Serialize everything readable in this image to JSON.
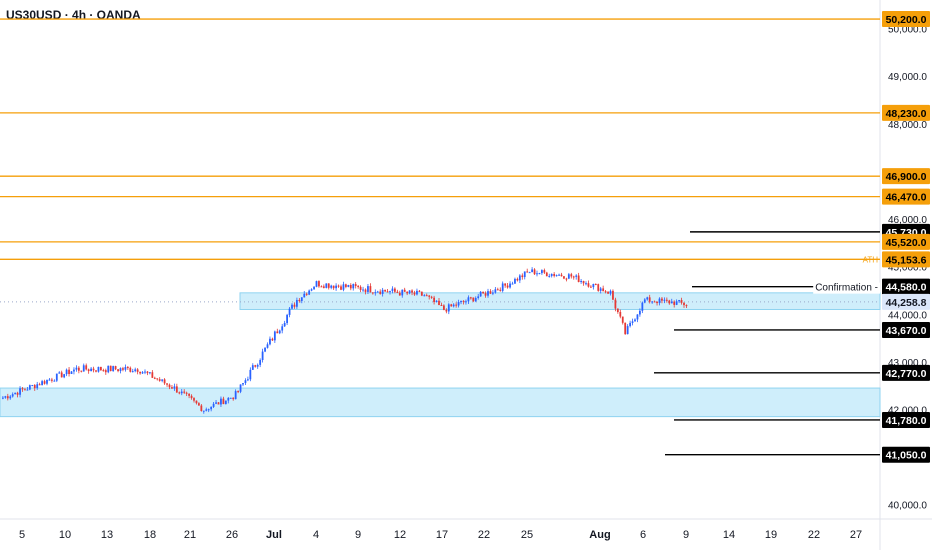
{
  "header": {
    "symbol": "US30USD · 4h · OANDA",
    "currency": "USD"
  },
  "colors": {
    "level_line": "#f59f0a",
    "level_tag_bg": "#f59f0a",
    "target_tag_bg": "#000000",
    "zone_fill": "#cfeefb",
    "zone_border": "#8fd3f0",
    "up_candle": "#2962ff",
    "down_candle": "#e53935"
  },
  "chart_data": {
    "type": "candlestick",
    "y_axis": {
      "min": 39700,
      "max": 50600,
      "ticks": [
        {
          "value": 50000,
          "label": "50,000.0"
        },
        {
          "value": 49000,
          "label": "49,000.0"
        },
        {
          "value": 48000,
          "label": "48,000.0"
        },
        {
          "value": 47000,
          "label": "47,000.0"
        },
        {
          "value": 46000,
          "label": "46,000.0"
        },
        {
          "value": 45000,
          "label": "45,000.0"
        },
        {
          "value": 44000,
          "label": "44,000.0"
        },
        {
          "value": 43000,
          "label": "43,000.0"
        },
        {
          "value": 42000,
          "label": "42,000.0"
        },
        {
          "value": 41000,
          "label": "41,000.0"
        },
        {
          "value": 40000,
          "label": "40,000.0"
        }
      ]
    },
    "x_axis": {
      "ticks": [
        {
          "label": "5",
          "bold": false
        },
        {
          "label": "10",
          "bold": false
        },
        {
          "label": "13",
          "bold": false
        },
        {
          "label": "18",
          "bold": false
        },
        {
          "label": "21",
          "bold": false
        },
        {
          "label": "26",
          "bold": false
        },
        {
          "label": "Jul",
          "bold": true
        },
        {
          "label": "4",
          "bold": false
        },
        {
          "label": "9",
          "bold": false
        },
        {
          "label": "12",
          "bold": false
        },
        {
          "label": "17",
          "bold": false
        },
        {
          "label": "22",
          "bold": false
        },
        {
          "label": "25",
          "bold": false
        },
        {
          "label": "Aug",
          "bold": true
        },
        {
          "label": "6",
          "bold": false
        },
        {
          "label": "9",
          "bold": false
        },
        {
          "label": "14",
          "bold": false
        },
        {
          "label": "19",
          "bold": false
        },
        {
          "label": "22",
          "bold": false
        },
        {
          "label": "27",
          "bold": false
        }
      ]
    },
    "horizontal_levels": [
      50200,
      48230,
      46900,
      46470,
      45520,
      45153.6
    ],
    "level_tags": [
      {
        "value": 50200,
        "label": "50,200.0",
        "style": "orange"
      },
      {
        "value": 48230,
        "label": "48,230.0",
        "style": "orange"
      },
      {
        "value": 46900,
        "label": "46,900.0",
        "style": "orange"
      },
      {
        "value": 46470,
        "label": "46,470.0",
        "style": "orange"
      },
      {
        "value": 45730,
        "label": "45,730.0",
        "style": "black"
      },
      {
        "value": 45520,
        "label": "45,520.0",
        "style": "orange"
      },
      {
        "value": 45153.6,
        "label": "45,153.6",
        "style": "orange"
      },
      {
        "value": 44580,
        "label": "44,580.0",
        "style": "black"
      },
      {
        "value": 44258.8,
        "label": "44,258.8",
        "style": "current"
      },
      {
        "value": 43670,
        "label": "43,670.0",
        "style": "black"
      },
      {
        "value": 42770,
        "label": "42,770.0",
        "style": "black"
      },
      {
        "value": 41780,
        "label": "41,780.0",
        "style": "black"
      },
      {
        "value": 41050,
        "label": "41,050.0",
        "style": "black"
      }
    ],
    "target_lines": [
      45730,
      44580,
      43670,
      42770,
      41780,
      41050
    ],
    "zones": [
      {
        "top": 44450,
        "bottom": 44100
      },
      {
        "top": 42450,
        "bottom": 41850
      }
    ],
    "annotations": {
      "ath": "ATH",
      "confirmation": "Confirmation"
    },
    "candles_segments": [
      {
        "from": 0,
        "to": 30,
        "start": 42250,
        "end": 42850,
        "vol": 90
      },
      {
        "from": 30,
        "to": 55,
        "start": 42850,
        "end": 42850,
        "vol": 100
      },
      {
        "from": 55,
        "to": 70,
        "start": 42850,
        "end": 42450,
        "vol": 90
      },
      {
        "from": 70,
        "to": 82,
        "start": 42450,
        "end": 42000,
        "vol": 90
      },
      {
        "from": 82,
        "to": 95,
        "start": 42000,
        "end": 42300,
        "vol": 90
      },
      {
        "from": 95,
        "to": 120,
        "start": 42300,
        "end": 44300,
        "vol": 110
      },
      {
        "from": 120,
        "to": 128,
        "start": 44300,
        "end": 44650,
        "vol": 90
      },
      {
        "from": 128,
        "to": 172,
        "start": 44650,
        "end": 44400,
        "vol": 100
      },
      {
        "from": 172,
        "to": 180,
        "start": 44400,
        "end": 44100,
        "vol": 90
      },
      {
        "from": 180,
        "to": 205,
        "start": 44100,
        "end": 44600,
        "vol": 90
      },
      {
        "from": 205,
        "to": 215,
        "start": 44600,
        "end": 44900,
        "vol": 90
      },
      {
        "from": 215,
        "to": 232,
        "start": 44900,
        "end": 44800,
        "vol": 90
      },
      {
        "from": 232,
        "to": 248,
        "start": 44800,
        "end": 44450,
        "vol": 90
      },
      {
        "from": 248,
        "to": 254,
        "start": 44450,
        "end": 43600,
        "vol": 110
      },
      {
        "from": 254,
        "to": 262,
        "start": 43600,
        "end": 44300,
        "vol": 90
      },
      {
        "from": 262,
        "to": 274,
        "start": 44300,
        "end": 44250,
        "vol": 80
      },
      {
        "from": 274,
        "to": 280,
        "start": 44250,
        "end": 44200,
        "vol": 90
      }
    ]
  }
}
